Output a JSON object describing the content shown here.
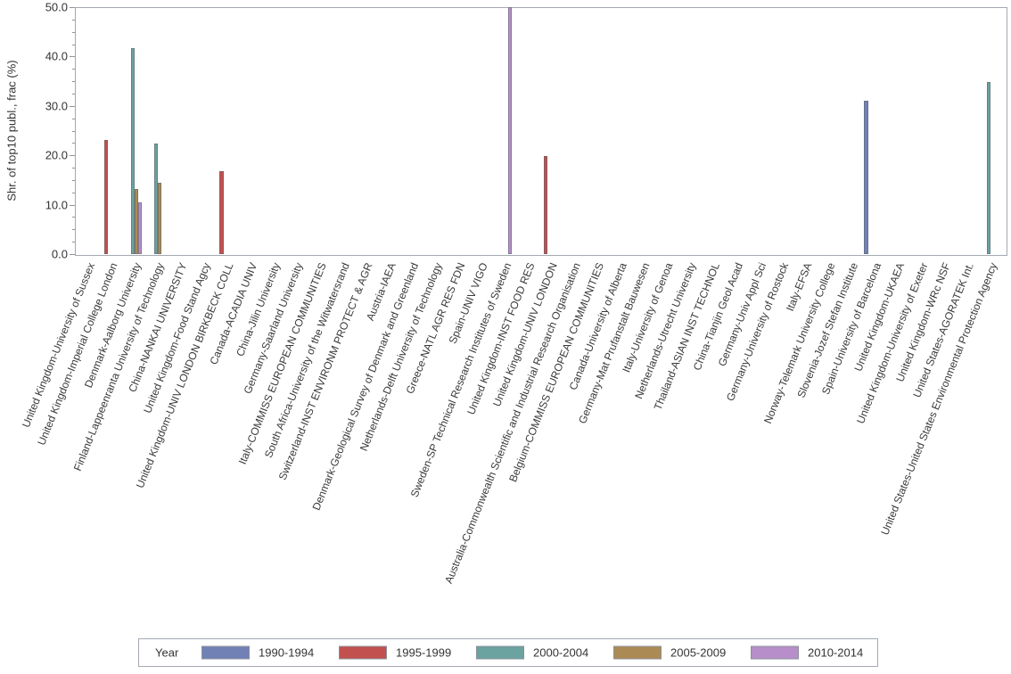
{
  "figure": {
    "background": "#ffffff",
    "frame_color": "#a3a9b3",
    "tick_color": "#8f959d",
    "text_color": "#3a3a3a"
  },
  "chart_data": {
    "type": "bar",
    "title": "",
    "xlabel": "",
    "ylabel": "Shr. of top10 publ., frac (%)",
    "ylim": [
      0,
      50
    ],
    "ytick_step": 10,
    "ytick_minor_step": 2.5,
    "ytick_decimals": 1,
    "grid": false,
    "legend": {
      "title": "Year",
      "position": "bottom"
    },
    "categories": [
      "United Kingdom-University of Sussex",
      "United Kingdom-Imperial College London",
      "Denmark-Aalborg University",
      "Finland-Lappeenranta University of Technology",
      "China-NANKAI UNIVERSITY",
      "United Kingdom-Food Stand Agcy",
      "United Kingdom-UNIV LONDON BIRKBECK COLL",
      "Canada-ACADIA UNIV",
      "China-Jilin University",
      "Germany-Saarland University",
      "Italy-COMMISS EUROPEAN COMMUNITIES",
      "South Africa-University of the Witwatersrand",
      "Switzerland-INST ENVIRONM PROTECT & AGR",
      "Austria-IAEA",
      "Denmark-Geological Survey of Denmark and Greenland",
      "Netherlands-Delft University of Technology",
      "Greece-NATL AGR RES FDN",
      "Spain-UNIV VIGO",
      "Sweden-SP Technical Research Institutes of Sweden",
      "United Kingdom-INST FOOD RES",
      "United Kingdom-UNIV LONDON",
      "Australia-Commonwealth Scientific and Industrial Research Organisation",
      "Belgium-COMMISS EUROPEAN COMMUNITIES",
      "Canada-University of Alberta",
      "Germany-Mat Prufanstalt Bauwesen",
      "Italy-University of Genoa",
      "Netherlands-Utrecht University",
      "Thailand-ASIAN INST TECHNOL",
      "China-Tianjin Geol Acad",
      "Germany-Univ Appl Sci",
      "Germany-University of Rostock",
      "Italy-EFSA",
      "Norway-Telemark University College",
      "Slovenia-Jozef Stefan Institute",
      "Spain-University of Barcelona",
      "United Kingdom-UKAEA",
      "United Kingdom-University of Exeter",
      "United Kingdom-WRc NSF",
      "United States-AGORATEK Int.",
      "United States-United States Environmental Protection Agency"
    ],
    "series": [
      {
        "name": "1990-1994",
        "color": "#7181b6",
        "values": [
          null,
          null,
          null,
          null,
          null,
          null,
          null,
          null,
          null,
          null,
          null,
          null,
          null,
          null,
          null,
          null,
          null,
          null,
          null,
          null,
          null,
          null,
          null,
          null,
          null,
          null,
          null,
          null,
          null,
          null,
          null,
          null,
          null,
          null,
          31.1,
          null,
          null,
          null,
          null,
          null
        ]
      },
      {
        "name": "1995-1999",
        "color": "#c2504e",
        "values": [
          null,
          23.1,
          null,
          null,
          null,
          null,
          16.8,
          null,
          null,
          null,
          null,
          null,
          null,
          null,
          null,
          null,
          null,
          null,
          null,
          null,
          19.9,
          null,
          null,
          null,
          null,
          null,
          null,
          null,
          null,
          null,
          null,
          null,
          null,
          null,
          null,
          null,
          null,
          null,
          null,
          null
        ]
      },
      {
        "name": "2000-2004",
        "color": "#6ba3a0",
        "values": [
          null,
          null,
          41.7,
          22.3,
          null,
          null,
          null,
          null,
          null,
          null,
          null,
          null,
          null,
          null,
          null,
          null,
          null,
          null,
          null,
          null,
          null,
          null,
          null,
          null,
          null,
          null,
          null,
          null,
          null,
          null,
          null,
          null,
          null,
          null,
          null,
          null,
          null,
          null,
          null,
          34.9
        ]
      },
      {
        "name": "2005-2009",
        "color": "#ac8a53",
        "values": [
          null,
          null,
          13.2,
          14.4,
          null,
          null,
          null,
          null,
          null,
          null,
          null,
          null,
          null,
          null,
          null,
          null,
          null,
          null,
          null,
          null,
          null,
          null,
          null,
          null,
          null,
          null,
          null,
          null,
          null,
          null,
          null,
          null,
          null,
          null,
          null,
          null,
          null,
          null,
          null,
          null
        ]
      },
      {
        "name": "2010-2014",
        "color": "#b78ec9",
        "values": [
          null,
          null,
          10.4,
          null,
          null,
          null,
          null,
          null,
          null,
          null,
          null,
          null,
          null,
          null,
          null,
          null,
          null,
          null,
          50.0,
          null,
          null,
          null,
          null,
          null,
          null,
          null,
          null,
          null,
          null,
          null,
          null,
          null,
          null,
          null,
          null,
          null,
          null,
          null,
          null,
          null
        ]
      }
    ]
  }
}
